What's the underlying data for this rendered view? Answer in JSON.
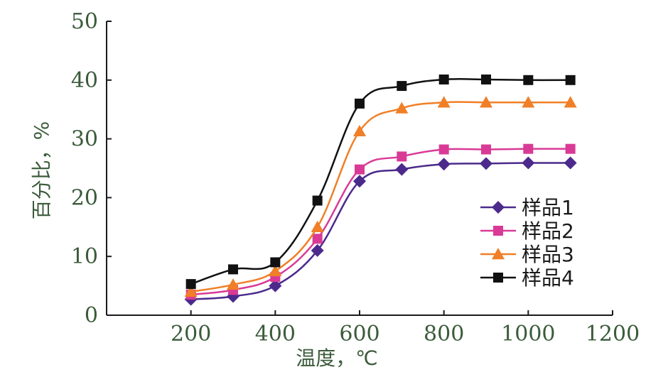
{
  "chart_data": {
    "type": "line",
    "xlabel": "温度，℃",
    "ylabel": "百分比，%",
    "xlim": [
      0,
      1200
    ],
    "ylim": [
      0,
      50
    ],
    "x_ticks": [
      200,
      400,
      600,
      800,
      1000,
      1200
    ],
    "y_ticks": [
      0,
      10,
      20,
      30,
      40,
      50
    ],
    "grid": false,
    "legend_position": "right",
    "x": [
      200,
      300,
      400,
      500,
      600,
      700,
      800,
      900,
      1000,
      1100
    ],
    "series": [
      {
        "name": "样品1",
        "marker": "diamond",
        "color": "#4b2a8c",
        "values": [
          2.7,
          3.2,
          5.0,
          11.0,
          22.8,
          24.8,
          25.7,
          25.8,
          25.9,
          25.9
        ]
      },
      {
        "name": "样品2",
        "marker": "square",
        "color": "#d93a96",
        "values": [
          3.5,
          4.3,
          6.5,
          13.0,
          24.8,
          27.0,
          28.2,
          28.2,
          28.3,
          28.3
        ]
      },
      {
        "name": "样品3",
        "marker": "triangle",
        "color": "#f07f27",
        "values": [
          4.0,
          5.2,
          7.5,
          15.0,
          31.3,
          35.2,
          36.2,
          36.2,
          36.2,
          36.2
        ]
      },
      {
        "name": "样品4",
        "marker": "square",
        "color": "#111111",
        "values": [
          5.3,
          7.8,
          9.0,
          19.5,
          36.0,
          39.0,
          40.1,
          40.1,
          40.0,
          40.0
        ]
      }
    ]
  }
}
